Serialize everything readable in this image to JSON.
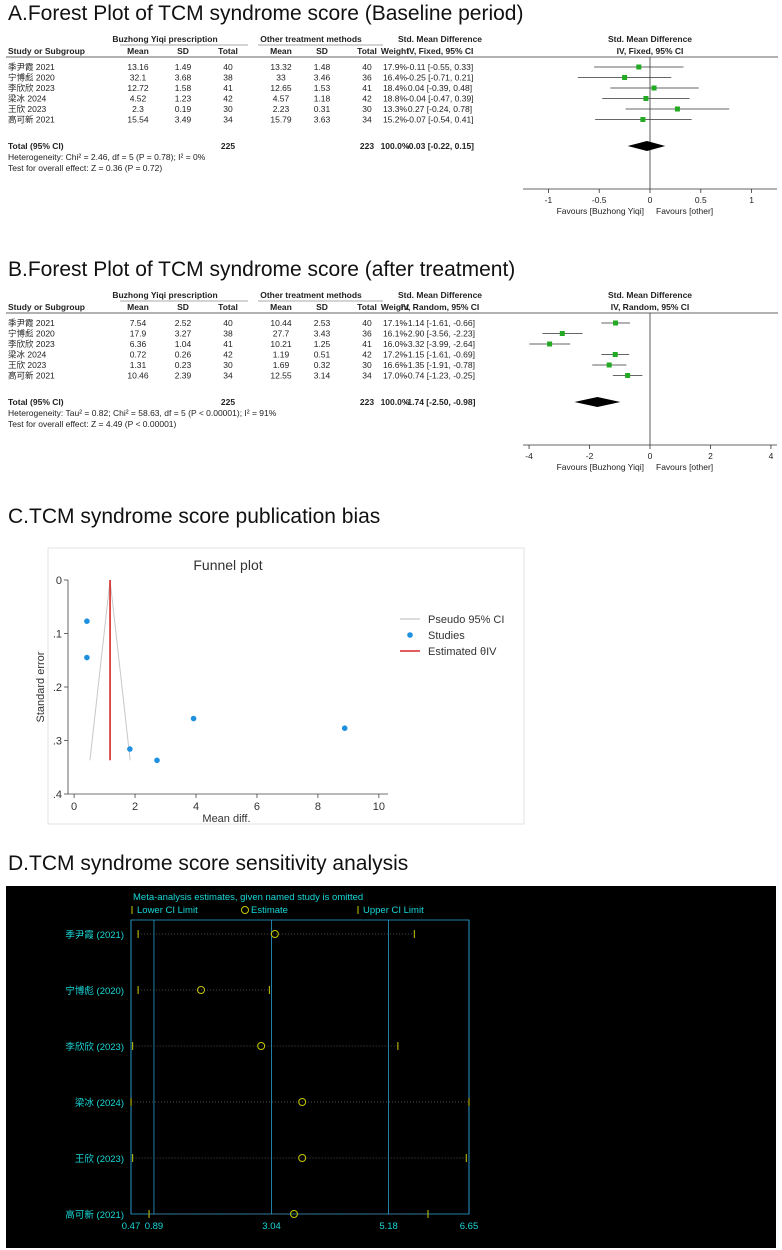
{
  "panels": {
    "a_title": "A.Forest Plot of TCM syndrome score (Baseline period)",
    "b_title": "B.Forest Plot of TCM syndrome score (after treatment)",
    "c_title": "C.TCM syndrome score publication bias",
    "d_title": "D.TCM syndrome score  sensitivity analysis"
  },
  "chart_data": [
    {
      "type": "table",
      "panel": "A",
      "group_headers": [
        "Buzhong Yiqi prescription",
        "Other treatment methods",
        "Std. Mean Difference",
        "Std. Mean Difference"
      ],
      "columns": [
        "Study or Subgroup",
        "Mean",
        "SD",
        "Total",
        "Mean",
        "SD",
        "Total",
        "Weight",
        "IV, Fixed, 95% CI",
        "IV, Fixed, 95% CI"
      ],
      "rows": [
        {
          "study": "季尹霞 2021",
          "m1": "13.16",
          "sd1": "1.49",
          "n1": "40",
          "m2": "13.32",
          "sd2": "1.48",
          "n2": "40",
          "weight": "17.9%",
          "ci_text": "-0.11 [-0.55, 0.33]",
          "est": -0.11,
          "lo": -0.55,
          "hi": 0.33
        },
        {
          "study": "宁博彪 2020",
          "m1": "32.1",
          "sd1": "3.68",
          "n1": "38",
          "m2": "33",
          "sd2": "3.46",
          "n2": "36",
          "weight": "16.4%",
          "ci_text": "-0.25 [-0.71, 0.21]",
          "est": -0.25,
          "lo": -0.71,
          "hi": 0.21
        },
        {
          "study": "李欣欣 2023",
          "m1": "12.72",
          "sd1": "1.58",
          "n1": "41",
          "m2": "12.65",
          "sd2": "1.53",
          "n2": "41",
          "weight": "18.4%",
          "ci_text": "0.04 [-0.39, 0.48]",
          "est": 0.04,
          "lo": -0.39,
          "hi": 0.48
        },
        {
          "study": "梁冰 2024",
          "m1": "4.52",
          "sd1": "1.23",
          "n1": "42",
          "m2": "4.57",
          "sd2": "1.18",
          "n2": "42",
          "weight": "18.8%",
          "ci_text": "-0.04 [-0.47, 0.39]",
          "est": -0.04,
          "lo": -0.47,
          "hi": 0.39
        },
        {
          "study": "王欣 2023",
          "m1": "2.3",
          "sd1": "0.19",
          "n1": "30",
          "m2": "2.23",
          "sd2": "0.31",
          "n2": "30",
          "weight": "13.3%",
          "ci_text": "0.27 [-0.24, 0.78]",
          "est": 0.27,
          "lo": -0.24,
          "hi": 0.78
        },
        {
          "study": "高可新 2021",
          "m1": "15.54",
          "sd1": "3.49",
          "n1": "34",
          "m2": "15.79",
          "sd2": "3.63",
          "n2": "34",
          "weight": "15.2%",
          "ci_text": "-0.07 [-0.54, 0.41]",
          "est": -0.07,
          "lo": -0.54,
          "hi": 0.41
        }
      ],
      "total": {
        "label": "Total (95% CI)",
        "n1": "225",
        "n2": "223",
        "weight": "100.0%",
        "ci_text": "-0.03 [-0.22, 0.15]",
        "est": -0.03,
        "lo": -0.22,
        "hi": 0.15
      },
      "heterogeneity": "Heterogeneity: Chi² = 2.46, df = 5 (P = 0.78); I² = 0%",
      "overall_test": "Test for overall effect: Z = 0.36 (P = 0.72)",
      "x_ticks": [
        -1,
        -0.5,
        0,
        0.5,
        1
      ],
      "x_tick_labels": [
        "-1",
        "-0.5",
        "0",
        "0.5",
        "1"
      ],
      "xlim": [
        -1.25,
        1.25
      ],
      "favours_left": "Favours [Buzhong Yiqi]",
      "favours_right": "Favours [other]"
    },
    {
      "type": "table",
      "panel": "B",
      "group_headers": [
        "Buzhong Yiqi prescription",
        "Other treatment methods",
        "Std. Mean Difference",
        "Std. Mean Difference"
      ],
      "columns": [
        "Study or Subgroup",
        "Mean",
        "SD",
        "Total",
        "Mean",
        "SD",
        "Total",
        "Weight",
        "IV, Random, 95% CI",
        "IV, Random, 95% CI"
      ],
      "rows": [
        {
          "study": "季尹霞 2021",
          "m1": "7.54",
          "sd1": "2.52",
          "n1": "40",
          "m2": "10.44",
          "sd2": "2.53",
          "n2": "40",
          "weight": "17.1%",
          "ci_text": "-1.14 [-1.61, -0.66]",
          "est": -1.14,
          "lo": -1.61,
          "hi": -0.66
        },
        {
          "study": "宁博彪 2020",
          "m1": "17.9",
          "sd1": "3.27",
          "n1": "38",
          "m2": "27.7",
          "sd2": "3.43",
          "n2": "36",
          "weight": "16.1%",
          "ci_text": "-2.90 [-3.56, -2.23]",
          "est": -2.9,
          "lo": -3.56,
          "hi": -2.23
        },
        {
          "study": "李欣欣 2023",
          "m1": "6.36",
          "sd1": "1.04",
          "n1": "41",
          "m2": "10.21",
          "sd2": "1.25",
          "n2": "41",
          "weight": "16.0%",
          "ci_text": "-3.32 [-3.99, -2.64]",
          "est": -3.32,
          "lo": -3.99,
          "hi": -2.64
        },
        {
          "study": "梁冰 2024",
          "m1": "0.72",
          "sd1": "0.26",
          "n1": "42",
          "m2": "1.19",
          "sd2": "0.51",
          "n2": "42",
          "weight": "17.2%",
          "ci_text": "-1.15 [-1.61, -0.69]",
          "est": -1.15,
          "lo": -1.61,
          "hi": -0.69
        },
        {
          "study": "王欣 2023",
          "m1": "1.31",
          "sd1": "0.23",
          "n1": "30",
          "m2": "1.69",
          "sd2": "0.32",
          "n2": "30",
          "weight": "16.6%",
          "ci_text": "-1.35 [-1.91, -0.78]",
          "est": -1.35,
          "lo": -1.91,
          "hi": -0.78
        },
        {
          "study": "高可新 2021",
          "m1": "10.46",
          "sd1": "2.39",
          "n1": "34",
          "m2": "12.55",
          "sd2": "3.14",
          "n2": "34",
          "weight": "17.0%",
          "ci_text": "-0.74 [-1.23, -0.25]",
          "est": -0.74,
          "lo": -1.23,
          "hi": -0.25
        }
      ],
      "total": {
        "label": "Total (95% CI)",
        "n1": "225",
        "n2": "223",
        "weight": "100.0%",
        "ci_text": "-1.74 [-2.50, -0.98]",
        "est": -1.74,
        "lo": -2.5,
        "hi": -0.98
      },
      "heterogeneity": "Heterogeneity: Tau² = 0.82; Chi² = 58.63, df = 5 (P < 0.00001); I² = 91%",
      "overall_test": "Test for overall effect: Z = 4.49 (P < 0.00001)",
      "x_ticks": [
        -4,
        -2,
        0,
        2,
        4
      ],
      "x_tick_labels": [
        "-4",
        "-2",
        "0",
        "2",
        "4"
      ],
      "xlim": [
        -4.2,
        4.2
      ],
      "favours_left": "Favours [Buzhong Yiqi]",
      "favours_right": "Favours [other]"
    },
    {
      "type": "scatter",
      "panel": "C",
      "title": "Funnel plot",
      "xlabel": "Mean diff.",
      "ylabel": "Standard error",
      "xlim": [
        -0.2,
        10.3
      ],
      "ylim": [
        0,
        0.4
      ],
      "y_reversed": true,
      "x_ticks": [
        0,
        2,
        4,
        6,
        8,
        10
      ],
      "y_ticks": [
        0,
        0.1,
        0.2,
        0.3,
        0.4
      ],
      "y_tick_labels": [
        "0",
        ".1",
        ".2",
        ".3",
        ".4"
      ],
      "points": [
        {
          "x": 0.42,
          "y": 0.077
        },
        {
          "x": 0.42,
          "y": 0.145
        },
        {
          "x": 1.83,
          "y": 0.316
        },
        {
          "x": 2.72,
          "y": 0.337
        },
        {
          "x": 3.92,
          "y": 0.259
        },
        {
          "x": 8.88,
          "y": 0.277
        }
      ],
      "estimate": 1.18,
      "pseudo_ci": [
        {
          "x": 0.52,
          "y": 0.337
        },
        {
          "x": 1.18,
          "y": 0
        },
        {
          "x": 1.84,
          "y": 0.337
        }
      ],
      "legend": [
        "Pseudo 95% CI",
        "Studies",
        "Estimated θIV"
      ],
      "colors": {
        "studies": "#1e90e0",
        "estimate": "#d62728",
        "pseudo_ci": "#c8c8c8"
      }
    },
    {
      "type": "scatter",
      "panel": "D",
      "title": "Meta-analysis estimates, given named study is omitted",
      "legend": [
        "Lower CI Limit",
        "Estimate",
        "Upper CI Limit"
      ],
      "reference_lines": [
        0.47,
        0.89,
        3.04,
        5.18,
        6.65
      ],
      "x_tick_labels": [
        "0.47",
        "0.89",
        "3.04",
        "5.18",
        "6.65"
      ],
      "rows": [
        {
          "study": "季尹霞 (2021)",
          "lower": 0.6,
          "est": 3.1,
          "upper": 5.65
        },
        {
          "study": "宁博彪 (2020)",
          "lower": 0.6,
          "est": 1.75,
          "upper": 3.0
        },
        {
          "study": "李欣欣 (2023)",
          "lower": 0.5,
          "est": 2.85,
          "upper": 5.35
        },
        {
          "study": "梁冰 (2024)",
          "lower": 0.47,
          "est": 3.6,
          "upper": 6.65
        },
        {
          "study": "王欣 (2023)",
          "lower": 0.5,
          "est": 3.6,
          "upper": 6.6
        },
        {
          "study": "高可新 (2021)",
          "lower": 0.8,
          "est": 3.45,
          "upper": 5.9
        }
      ],
      "colors": {
        "background": "#000000",
        "text": "#18d8d8",
        "estimate": "#c8c800",
        "limits": "#c8c800",
        "lines": "#2a9fd0"
      }
    }
  ]
}
